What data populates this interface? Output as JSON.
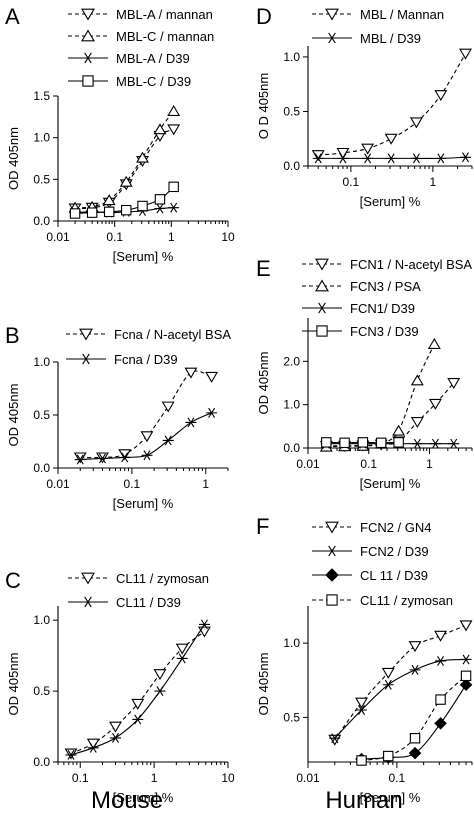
{
  "footer": {
    "left": "Mouse",
    "right": "Human"
  },
  "chart_data": [
    {
      "id": "A",
      "letter": "A",
      "type": "line",
      "xlabel": "[Serum] %",
      "ylabel": "OD 405nm",
      "xscale": "log",
      "xlim": [
        0.01,
        10
      ],
      "ylim": [
        0,
        1.5
      ],
      "xticks": [
        0.01,
        0.1,
        1,
        10
      ],
      "xticklabels": [
        "0.01",
        "0.1",
        "1",
        "10"
      ],
      "yticks": [
        0,
        0.5,
        1.0,
        1.5
      ],
      "yticklabels": [
        "0.0",
        "0.5",
        "1.0",
        "1.5"
      ],
      "series": [
        {
          "name": "MBL-A / mannan",
          "marker": "tri-down",
          "dash": true,
          "x": [
            0.02,
            0.04,
            0.08,
            0.16,
            0.31,
            0.63,
            1.1
          ],
          "y": [
            0.15,
            0.16,
            0.22,
            0.44,
            0.72,
            1.02,
            1.1
          ]
        },
        {
          "name": "MBL-C / mannan",
          "marker": "tri-up",
          "dash": true,
          "x": [
            0.02,
            0.04,
            0.08,
            0.16,
            0.31,
            0.63,
            1.1
          ],
          "y": [
            0.16,
            0.17,
            0.25,
            0.47,
            0.76,
            1.1,
            1.32
          ]
        },
        {
          "name": "MBL-A / D39",
          "marker": "star",
          "dash": false,
          "x": [
            0.02,
            0.04,
            0.08,
            0.16,
            0.31,
            0.63,
            1.1
          ],
          "y": [
            0.1,
            0.11,
            0.1,
            0.11,
            0.12,
            0.15,
            0.16
          ]
        },
        {
          "name": "MBL-C / D39",
          "marker": "square",
          "dash": false,
          "x": [
            0.02,
            0.04,
            0.08,
            0.16,
            0.31,
            0.63,
            1.1
          ],
          "y": [
            0.09,
            0.1,
            0.11,
            0.13,
            0.18,
            0.26,
            0.41
          ]
        }
      ]
    },
    {
      "id": "B",
      "letter": "B",
      "type": "line",
      "xlabel": "[Serum] %",
      "ylabel": "OD 405nm",
      "xscale": "log",
      "xlim": [
        0.01,
        2
      ],
      "ylim": [
        0,
        1.0
      ],
      "xticks": [
        0.01,
        0.1,
        1
      ],
      "xticklabels": [
        "0.01",
        "0.1",
        "1"
      ],
      "yticks": [
        0,
        0.5,
        1.0
      ],
      "yticklabels": [
        "0.0",
        "0.5",
        "1.0"
      ],
      "series": [
        {
          "name": "Fcna / N-acetyl BSA",
          "marker": "tri-down",
          "dash": true,
          "x": [
            0.02,
            0.04,
            0.08,
            0.16,
            0.31,
            0.63,
            1.2
          ],
          "y": [
            0.1,
            0.1,
            0.13,
            0.3,
            0.58,
            0.9,
            0.86
          ]
        },
        {
          "name": "Fcna / D39",
          "marker": "star",
          "dash": false,
          "x": [
            0.02,
            0.04,
            0.08,
            0.16,
            0.31,
            0.63,
            1.2
          ],
          "y": [
            0.08,
            0.09,
            0.1,
            0.12,
            0.26,
            0.43,
            0.52
          ]
        }
      ]
    },
    {
      "id": "C",
      "letter": "C",
      "type": "line",
      "xlabel": "[Serum] %",
      "ylabel": "OD 405nm",
      "xscale": "log",
      "xlim": [
        0.05,
        10
      ],
      "ylim": [
        0,
        1.1
      ],
      "xticks": [
        0.1,
        1,
        10
      ],
      "xticklabels": [
        "0.1",
        "1",
        "10"
      ],
      "yticks": [
        0,
        0.5,
        1.0
      ],
      "yticklabels": [
        "0.0",
        "0.5",
        "1.0"
      ],
      "series": [
        {
          "name": "CL11 / zymosan",
          "marker": "tri-down",
          "dash": true,
          "x": [
            0.075,
            0.15,
            0.3,
            0.6,
            1.2,
            2.4,
            4.8
          ],
          "y": [
            0.06,
            0.13,
            0.25,
            0.41,
            0.62,
            0.8,
            0.92
          ]
        },
        {
          "name": "CL11 / D39",
          "marker": "star",
          "dash": false,
          "x": [
            0.075,
            0.15,
            0.3,
            0.6,
            1.2,
            2.4,
            4.8
          ],
          "y": [
            0.05,
            0.1,
            0.17,
            0.3,
            0.5,
            0.73,
            0.97
          ]
        }
      ]
    },
    {
      "id": "D",
      "letter": "D",
      "type": "line",
      "xlabel": "[Serum] %",
      "ylabel": "O D 405nm",
      "xscale": "log",
      "xlim": [
        0.03,
        3
      ],
      "ylim": [
        0,
        1.1
      ],
      "xticks": [
        0.1,
        1
      ],
      "xticklabels": [
        "0.1",
        "1"
      ],
      "yticks": [
        0,
        0.5,
        1.0
      ],
      "yticklabels": [
        "0.0",
        "0.5",
        "1.0"
      ],
      "series": [
        {
          "name": "MBL / Mannan",
          "marker": "tri-down",
          "dash": true,
          "x": [
            0.04,
            0.08,
            0.16,
            0.31,
            0.63,
            1.25,
            2.5
          ],
          "y": [
            0.1,
            0.12,
            0.16,
            0.25,
            0.4,
            0.65,
            1.03
          ]
        },
        {
          "name": "MBL / D39",
          "marker": "star",
          "dash": false,
          "x": [
            0.04,
            0.08,
            0.16,
            0.31,
            0.63,
            1.25,
            2.5
          ],
          "y": [
            0.07,
            0.07,
            0.07,
            0.07,
            0.07,
            0.07,
            0.08
          ]
        }
      ]
    },
    {
      "id": "E",
      "letter": "E",
      "type": "line",
      "xlabel": "[Serum] %",
      "ylabel": "OD 405nm",
      "xscale": "log",
      "xlim": [
        0.01,
        5
      ],
      "ylim": [
        0,
        3.0
      ],
      "xticks": [
        0.01,
        0.1,
        1
      ],
      "xticklabels": [
        "0.01",
        "0.1",
        "1"
      ],
      "yticks": [
        0,
        1.0,
        2.0
      ],
      "yticklabels": [
        "0.0",
        "1.0",
        "2.0"
      ],
      "series": [
        {
          "name": "FCN1 / N-acetyl BSA",
          "marker": "tri-down",
          "dash": true,
          "x": [
            0.02,
            0.04,
            0.08,
            0.16,
            0.31,
            0.63,
            1.25,
            2.5
          ],
          "y": [
            0.05,
            0.05,
            0.06,
            0.08,
            0.15,
            0.6,
            1.02,
            1.5
          ]
        },
        {
          "name": "FCN3 / PSA",
          "marker": "tri-up",
          "dash": true,
          "x": [
            0.02,
            0.04,
            0.08,
            0.16,
            0.31,
            0.63,
            1.2
          ],
          "y": [
            0.03,
            0.04,
            0.05,
            0.1,
            0.4,
            1.56,
            2.4
          ]
        },
        {
          "name": "FCN1/ D39",
          "marker": "star",
          "dash": false,
          "x": [
            0.02,
            0.04,
            0.08,
            0.16,
            0.31,
            0.63,
            1.25,
            2.5
          ],
          "y": [
            0.1,
            0.1,
            0.1,
            0.1,
            0.1,
            0.1,
            0.1,
            0.1
          ]
        },
        {
          "name": "FCN3 / D39",
          "marker": "square",
          "dash": false,
          "x": [
            0.02,
            0.04,
            0.08,
            0.16,
            0.31
          ],
          "y": [
            0.13,
            0.12,
            0.13,
            0.12,
            0.13
          ]
        }
      ]
    },
    {
      "id": "F",
      "letter": "F",
      "type": "line",
      "xlabel": "[Serum] %",
      "ylabel": "OD 405nm",
      "xscale": "log",
      "xlim": [
        0.01,
        0.7
      ],
      "ylim": [
        0.2,
        1.25
      ],
      "xticks": [
        0.01,
        0.1
      ],
      "xticklabels": [
        "0.01",
        "0.1"
      ],
      "yticks": [
        0.5,
        1.0
      ],
      "yticklabels": [
        "0.5",
        "1.0"
      ],
      "series": [
        {
          "name": "FCN2 / GN4",
          "marker": "tri-down",
          "dash": true,
          "x": [
            0.02,
            0.04,
            0.08,
            0.16,
            0.31,
            0.6
          ],
          "y": [
            0.35,
            0.6,
            0.8,
            0.98,
            1.05,
            1.12
          ]
        },
        {
          "name": "FCN2 / D39",
          "marker": "star",
          "dash": false,
          "x": [
            0.02,
            0.04,
            0.08,
            0.16,
            0.31,
            0.6
          ],
          "y": [
            0.36,
            0.55,
            0.72,
            0.82,
            0.88,
            0.89
          ]
        },
        {
          "name": "CL 11 / D39",
          "marker": "diamond",
          "dash": false,
          "x": [
            0.04,
            0.08,
            0.16,
            0.31,
            0.6
          ],
          "y": [
            0.22,
            0.23,
            0.26,
            0.46,
            0.72
          ]
        },
        {
          "name": "CL11 / zymosan",
          "marker": "square",
          "dash": true,
          "x": [
            0.04,
            0.08,
            0.16,
            0.31,
            0.6
          ],
          "y": [
            0.21,
            0.24,
            0.36,
            0.62,
            0.78
          ]
        }
      ]
    }
  ]
}
